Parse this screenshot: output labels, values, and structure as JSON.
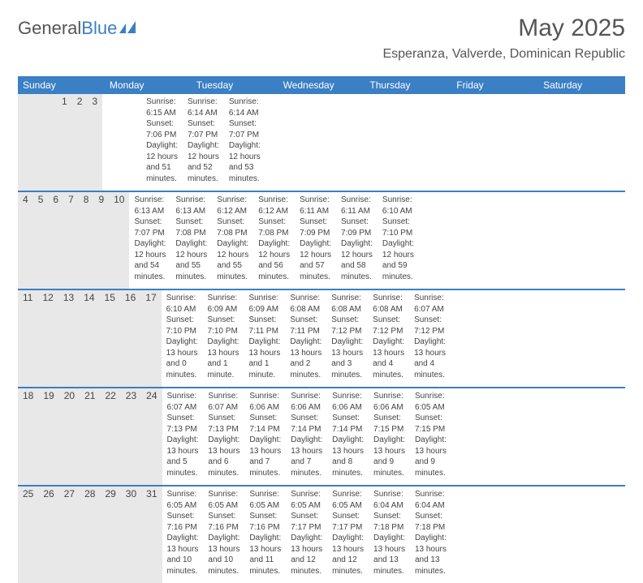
{
  "logo": {
    "text1": "General",
    "text2": "Blue"
  },
  "title": "May 2025",
  "location": "Esperanza, Valverde, Dominican Republic",
  "colors": {
    "header_bg": "#3b7fc4",
    "daynum_bg": "#e8e8e8",
    "text": "#444444",
    "title_text": "#555555"
  },
  "day_names": [
    "Sunday",
    "Monday",
    "Tuesday",
    "Wednesday",
    "Thursday",
    "Friday",
    "Saturday"
  ],
  "weeks": [
    [
      {
        "n": "",
        "sr": "",
        "ss": "",
        "dl": ""
      },
      {
        "n": "",
        "sr": "",
        "ss": "",
        "dl": ""
      },
      {
        "n": "",
        "sr": "",
        "ss": "",
        "dl": ""
      },
      {
        "n": "",
        "sr": "",
        "ss": "",
        "dl": ""
      },
      {
        "n": "1",
        "sr": "Sunrise: 6:15 AM",
        "ss": "Sunset: 7:06 PM",
        "dl": "Daylight: 12 hours and 51 minutes."
      },
      {
        "n": "2",
        "sr": "Sunrise: 6:14 AM",
        "ss": "Sunset: 7:07 PM",
        "dl": "Daylight: 12 hours and 52 minutes."
      },
      {
        "n": "3",
        "sr": "Sunrise: 6:14 AM",
        "ss": "Sunset: 7:07 PM",
        "dl": "Daylight: 12 hours and 53 minutes."
      }
    ],
    [
      {
        "n": "4",
        "sr": "Sunrise: 6:13 AM",
        "ss": "Sunset: 7:07 PM",
        "dl": "Daylight: 12 hours and 54 minutes."
      },
      {
        "n": "5",
        "sr": "Sunrise: 6:13 AM",
        "ss": "Sunset: 7:08 PM",
        "dl": "Daylight: 12 hours and 55 minutes."
      },
      {
        "n": "6",
        "sr": "Sunrise: 6:12 AM",
        "ss": "Sunset: 7:08 PM",
        "dl": "Daylight: 12 hours and 55 minutes."
      },
      {
        "n": "7",
        "sr": "Sunrise: 6:12 AM",
        "ss": "Sunset: 7:08 PM",
        "dl": "Daylight: 12 hours and 56 minutes."
      },
      {
        "n": "8",
        "sr": "Sunrise: 6:11 AM",
        "ss": "Sunset: 7:09 PM",
        "dl": "Daylight: 12 hours and 57 minutes."
      },
      {
        "n": "9",
        "sr": "Sunrise: 6:11 AM",
        "ss": "Sunset: 7:09 PM",
        "dl": "Daylight: 12 hours and 58 minutes."
      },
      {
        "n": "10",
        "sr": "Sunrise: 6:10 AM",
        "ss": "Sunset: 7:10 PM",
        "dl": "Daylight: 12 hours and 59 minutes."
      }
    ],
    [
      {
        "n": "11",
        "sr": "Sunrise: 6:10 AM",
        "ss": "Sunset: 7:10 PM",
        "dl": "Daylight: 13 hours and 0 minutes."
      },
      {
        "n": "12",
        "sr": "Sunrise: 6:09 AM",
        "ss": "Sunset: 7:10 PM",
        "dl": "Daylight: 13 hours and 1 minute."
      },
      {
        "n": "13",
        "sr": "Sunrise: 6:09 AM",
        "ss": "Sunset: 7:11 PM",
        "dl": "Daylight: 13 hours and 1 minute."
      },
      {
        "n": "14",
        "sr": "Sunrise: 6:08 AM",
        "ss": "Sunset: 7:11 PM",
        "dl": "Daylight: 13 hours and 2 minutes."
      },
      {
        "n": "15",
        "sr": "Sunrise: 6:08 AM",
        "ss": "Sunset: 7:12 PM",
        "dl": "Daylight: 13 hours and 3 minutes."
      },
      {
        "n": "16",
        "sr": "Sunrise: 6:08 AM",
        "ss": "Sunset: 7:12 PM",
        "dl": "Daylight: 13 hours and 4 minutes."
      },
      {
        "n": "17",
        "sr": "Sunrise: 6:07 AM",
        "ss": "Sunset: 7:12 PM",
        "dl": "Daylight: 13 hours and 4 minutes."
      }
    ],
    [
      {
        "n": "18",
        "sr": "Sunrise: 6:07 AM",
        "ss": "Sunset: 7:13 PM",
        "dl": "Daylight: 13 hours and 5 minutes."
      },
      {
        "n": "19",
        "sr": "Sunrise: 6:07 AM",
        "ss": "Sunset: 7:13 PM",
        "dl": "Daylight: 13 hours and 6 minutes."
      },
      {
        "n": "20",
        "sr": "Sunrise: 6:06 AM",
        "ss": "Sunset: 7:14 PM",
        "dl": "Daylight: 13 hours and 7 minutes."
      },
      {
        "n": "21",
        "sr": "Sunrise: 6:06 AM",
        "ss": "Sunset: 7:14 PM",
        "dl": "Daylight: 13 hours and 7 minutes."
      },
      {
        "n": "22",
        "sr": "Sunrise: 6:06 AM",
        "ss": "Sunset: 7:14 PM",
        "dl": "Daylight: 13 hours and 8 minutes."
      },
      {
        "n": "23",
        "sr": "Sunrise: 6:06 AM",
        "ss": "Sunset: 7:15 PM",
        "dl": "Daylight: 13 hours and 9 minutes."
      },
      {
        "n": "24",
        "sr": "Sunrise: 6:05 AM",
        "ss": "Sunset: 7:15 PM",
        "dl": "Daylight: 13 hours and 9 minutes."
      }
    ],
    [
      {
        "n": "25",
        "sr": "Sunrise: 6:05 AM",
        "ss": "Sunset: 7:16 PM",
        "dl": "Daylight: 13 hours and 10 minutes."
      },
      {
        "n": "26",
        "sr": "Sunrise: 6:05 AM",
        "ss": "Sunset: 7:16 PM",
        "dl": "Daylight: 13 hours and 10 minutes."
      },
      {
        "n": "27",
        "sr": "Sunrise: 6:05 AM",
        "ss": "Sunset: 7:16 PM",
        "dl": "Daylight: 13 hours and 11 minutes."
      },
      {
        "n": "28",
        "sr": "Sunrise: 6:05 AM",
        "ss": "Sunset: 7:17 PM",
        "dl": "Daylight: 13 hours and 12 minutes."
      },
      {
        "n": "29",
        "sr": "Sunrise: 6:05 AM",
        "ss": "Sunset: 7:17 PM",
        "dl": "Daylight: 13 hours and 12 minutes."
      },
      {
        "n": "30",
        "sr": "Sunrise: 6:04 AM",
        "ss": "Sunset: 7:18 PM",
        "dl": "Daylight: 13 hours and 13 minutes."
      },
      {
        "n": "31",
        "sr": "Sunrise: 6:04 AM",
        "ss": "Sunset: 7:18 PM",
        "dl": "Daylight: 13 hours and 13 minutes."
      }
    ]
  ]
}
